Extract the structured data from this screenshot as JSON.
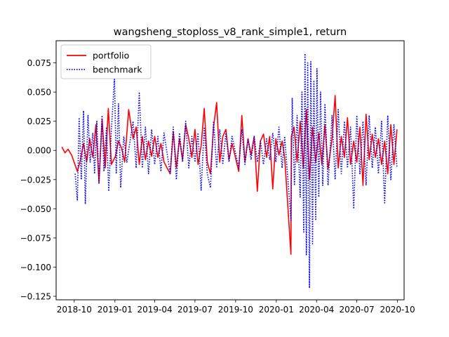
{
  "chart_data": {
    "type": "line",
    "title": "wangsheng_stoploss_v8_rank_simple1, return",
    "xlabel": "",
    "ylabel": "",
    "x_range": [
      "2018-08-21",
      "2020-10-16"
    ],
    "ylim": [
      -0.128,
      0.094
    ],
    "x_ticks": [
      "2018-10",
      "2019-01",
      "2019-04",
      "2019-07",
      "2019-10",
      "2020-01",
      "2020-04",
      "2020-07",
      "2020-10"
    ],
    "y_ticks": [
      0.075,
      0.05,
      0.025,
      0.0,
      -0.025,
      -0.05,
      -0.075,
      -0.1,
      -0.125
    ],
    "y_tick_labels": [
      "0.075",
      "0.050",
      "0.025",
      "0.000",
      "−0.025",
      "−0.050",
      "−0.075",
      "−0.100",
      "−0.125"
    ],
    "grid": false,
    "legend_position": "top-left",
    "series": [
      {
        "name": "portfolio",
        "color": "#ff0000",
        "style": "solid",
        "points": [
          [
            "2018-09-03",
            0.003
          ],
          [
            "2018-09-10",
            -0.002
          ],
          [
            "2018-09-17",
            0.001
          ],
          [
            "2018-09-25",
            -0.004
          ],
          [
            "2018-10-08",
            -0.018
          ],
          [
            "2018-10-15",
            -0.008
          ],
          [
            "2018-10-22",
            0.006
          ],
          [
            "2018-10-29",
            -0.01
          ],
          [
            "2018-11-05",
            0.01
          ],
          [
            "2018-11-12",
            -0.006
          ],
          [
            "2018-11-19",
            0.022
          ],
          [
            "2018-11-26",
            -0.028
          ],
          [
            "2018-12-03",
            0.027
          ],
          [
            "2018-12-10",
            -0.015
          ],
          [
            "2018-12-17",
            0.036
          ],
          [
            "2018-12-24",
            -0.012
          ],
          [
            "2019-01-02",
            -0.005
          ],
          [
            "2019-01-09",
            0.008
          ],
          [
            "2019-01-16",
            0.002
          ],
          [
            "2019-01-23",
            -0.01
          ],
          [
            "2019-02-01",
            0.035
          ],
          [
            "2019-02-11",
            0.01
          ],
          [
            "2019-02-18",
            0.02
          ],
          [
            "2019-02-25",
            -0.012
          ],
          [
            "2019-03-04",
            0.012
          ],
          [
            "2019-03-11",
            -0.008
          ],
          [
            "2019-03-18",
            0.008
          ],
          [
            "2019-03-25",
            -0.005
          ],
          [
            "2019-04-01",
            0.012
          ],
          [
            "2019-04-08",
            -0.006
          ],
          [
            "2019-04-15",
            0.006
          ],
          [
            "2019-04-22",
            -0.01
          ],
          [
            "2019-05-06",
            -0.02
          ],
          [
            "2019-05-13",
            0.016
          ],
          [
            "2019-05-20",
            -0.015
          ],
          [
            "2019-05-27",
            0.01
          ],
          [
            "2019-06-03",
            -0.008
          ],
          [
            "2019-06-10",
            0.022
          ],
          [
            "2019-06-17",
            0.01
          ],
          [
            "2019-06-24",
            -0.006
          ],
          [
            "2019-07-01",
            0.018
          ],
          [
            "2019-07-08",
            -0.012
          ],
          [
            "2019-07-15",
            0.004
          ],
          [
            "2019-07-22",
            0.036
          ],
          [
            "2019-07-29",
            -0.01
          ],
          [
            "2019-08-05",
            -0.02
          ],
          [
            "2019-08-12",
            0.02
          ],
          [
            "2019-08-19",
            0.041
          ],
          [
            "2019-08-26",
            -0.01
          ],
          [
            "2019-09-02",
            0.012
          ],
          [
            "2019-09-09",
            0.018
          ],
          [
            "2019-09-16",
            -0.008
          ],
          [
            "2019-09-23",
            0.006
          ],
          [
            "2019-10-08",
            -0.018
          ],
          [
            "2019-10-15",
            0.03
          ],
          [
            "2019-10-22",
            -0.01
          ],
          [
            "2019-10-29",
            0.01
          ],
          [
            "2019-11-05",
            -0.004
          ],
          [
            "2019-11-12",
            0.012
          ],
          [
            "2019-11-19",
            -0.035
          ],
          [
            "2019-11-26",
            0.008
          ],
          [
            "2019-12-03",
            0.014
          ],
          [
            "2019-12-10",
            -0.006
          ],
          [
            "2019-12-17",
            0.012
          ],
          [
            "2019-12-24",
            -0.033
          ],
          [
            "2019-12-31",
            0.01
          ],
          [
            "2020-01-07",
            -0.004
          ],
          [
            "2020-01-14",
            0.008
          ],
          [
            "2020-01-20",
            -0.006
          ],
          [
            "2020-02-03",
            -0.089
          ],
          [
            "2020-02-04",
            0.012
          ],
          [
            "2020-02-10",
            0.02
          ],
          [
            "2020-02-17",
            -0.01
          ],
          [
            "2020-02-24",
            0.025
          ],
          [
            "2020-03-02",
            -0.015
          ],
          [
            "2020-03-09",
            0.035
          ],
          [
            "2020-03-16",
            -0.025
          ],
          [
            "2020-03-23",
            0.02
          ],
          [
            "2020-03-30",
            -0.01
          ],
          [
            "2020-04-06",
            0.015
          ],
          [
            "2020-04-13",
            -0.012
          ],
          [
            "2020-04-20",
            0.022
          ],
          [
            "2020-04-27",
            -0.016
          ],
          [
            "2020-05-06",
            0.01
          ],
          [
            "2020-05-13",
            0.047
          ],
          [
            "2020-05-20",
            -0.015
          ],
          [
            "2020-05-27",
            0.012
          ],
          [
            "2020-06-03",
            -0.006
          ],
          [
            "2020-06-10",
            0.028
          ],
          [
            "2020-06-17",
            -0.012
          ],
          [
            "2020-06-24",
            0.008
          ],
          [
            "2020-07-01",
            -0.01
          ],
          [
            "2020-07-08",
            0.02
          ],
          [
            "2020-07-15",
            -0.03
          ],
          [
            "2020-07-22",
            0.031
          ],
          [
            "2020-07-29",
            -0.008
          ],
          [
            "2020-08-05",
            0.014
          ],
          [
            "2020-08-12",
            -0.006
          ],
          [
            "2020-08-19",
            0.01
          ],
          [
            "2020-08-26",
            -0.012
          ],
          [
            "2020-09-02",
            0.008
          ],
          [
            "2020-09-09",
            -0.02
          ],
          [
            "2020-09-16",
            0.022
          ],
          [
            "2020-09-23",
            -0.012
          ],
          [
            "2020-09-30",
            0.018
          ]
        ]
      },
      {
        "name": "benchmark",
        "color": "#0000ff",
        "style": "dotted",
        "points": [
          [
            "2018-10-03",
            -0.02
          ],
          [
            "2018-10-08",
            -0.043
          ],
          [
            "2018-10-12",
            0.028
          ],
          [
            "2018-10-17",
            -0.025
          ],
          [
            "2018-10-22",
            0.034
          ],
          [
            "2018-10-26",
            -0.046
          ],
          [
            "2018-11-01",
            0.03
          ],
          [
            "2018-11-06",
            -0.01
          ],
          [
            "2018-11-12",
            0.015
          ],
          [
            "2018-11-16",
            -0.02
          ],
          [
            "2018-11-21",
            0.025
          ],
          [
            "2018-11-26",
            -0.028
          ],
          [
            "2018-12-03",
            0.03
          ],
          [
            "2018-12-07",
            -0.018
          ],
          [
            "2018-12-13",
            0.02
          ],
          [
            "2018-12-18",
            -0.035
          ],
          [
            "2018-12-24",
            0.018
          ],
          [
            "2018-12-31",
            0.062
          ],
          [
            "2019-01-04",
            -0.02
          ],
          [
            "2019-01-09",
            0.04
          ],
          [
            "2019-01-14",
            -0.032
          ],
          [
            "2019-01-21",
            0.012
          ],
          [
            "2019-01-28",
            -0.01
          ],
          [
            "2019-02-11",
            0.025
          ],
          [
            "2019-02-18",
            -0.015
          ],
          [
            "2019-02-25",
            0.05
          ],
          [
            "2019-03-04",
            -0.015
          ],
          [
            "2019-03-11",
            0.02
          ],
          [
            "2019-03-18",
            -0.02
          ],
          [
            "2019-03-25",
            0.018
          ],
          [
            "2019-04-01",
            -0.012
          ],
          [
            "2019-04-08",
            0.012
          ],
          [
            "2019-04-15",
            -0.018
          ],
          [
            "2019-04-22",
            0.015
          ],
          [
            "2019-05-06",
            -0.02
          ],
          [
            "2019-05-13",
            0.02
          ],
          [
            "2019-05-20",
            -0.025
          ],
          [
            "2019-05-27",
            0.015
          ],
          [
            "2019-06-03",
            -0.01
          ],
          [
            "2019-06-10",
            0.025
          ],
          [
            "2019-06-17",
            -0.015
          ],
          [
            "2019-06-24",
            0.012
          ],
          [
            "2019-07-01",
            -0.01
          ],
          [
            "2019-07-08",
            0.015
          ],
          [
            "2019-07-15",
            -0.034
          ],
          [
            "2019-07-22",
            0.02
          ],
          [
            "2019-07-29",
            -0.02
          ],
          [
            "2019-08-05",
            -0.032
          ],
          [
            "2019-08-12",
            0.025
          ],
          [
            "2019-08-19",
            -0.015
          ],
          [
            "2019-08-26",
            0.018
          ],
          [
            "2019-09-02",
            -0.012
          ],
          [
            "2019-09-09",
            0.015
          ],
          [
            "2019-09-16",
            -0.01
          ],
          [
            "2019-09-23",
            0.012
          ],
          [
            "2019-10-08",
            -0.015
          ],
          [
            "2019-10-15",
            0.018
          ],
          [
            "2019-10-22",
            -0.012
          ],
          [
            "2019-10-29",
            0.01
          ],
          [
            "2019-11-05",
            -0.008
          ],
          [
            "2019-11-12",
            0.012
          ],
          [
            "2019-11-19",
            -0.01
          ],
          [
            "2019-11-26",
            0.008
          ],
          [
            "2019-12-03",
            -0.012
          ],
          [
            "2019-12-10",
            0.01
          ],
          [
            "2019-12-17",
            -0.008
          ],
          [
            "2019-12-24",
            0.015
          ],
          [
            "2019-12-31",
            -0.01
          ],
          [
            "2020-01-07",
            0.02
          ],
          [
            "2020-01-14",
            -0.015
          ],
          [
            "2020-01-20",
            0.012
          ],
          [
            "2020-02-03",
            -0.06
          ],
          [
            "2020-02-06",
            0.045
          ],
          [
            "2020-02-11",
            -0.03
          ],
          [
            "2020-02-17",
            0.03
          ],
          [
            "2020-02-24",
            -0.04
          ],
          [
            "2020-02-28",
            0.05
          ],
          [
            "2020-03-03",
            -0.07
          ],
          [
            "2020-03-06",
            0.083
          ],
          [
            "2020-03-09",
            -0.09
          ],
          [
            "2020-03-12",
            0.075
          ],
          [
            "2020-03-16",
            -0.118
          ],
          [
            "2020-03-19",
            0.076
          ],
          [
            "2020-03-23",
            -0.08
          ],
          [
            "2020-03-26",
            0.06
          ],
          [
            "2020-03-30",
            -0.06
          ],
          [
            "2020-04-02",
            0.07
          ],
          [
            "2020-04-06",
            -0.04
          ],
          [
            "2020-04-10",
            0.05
          ],
          [
            "2020-04-15",
            -0.03
          ],
          [
            "2020-04-20",
            0.04
          ],
          [
            "2020-04-27",
            -0.03
          ],
          [
            "2020-05-06",
            0.03
          ],
          [
            "2020-05-13",
            -0.025
          ],
          [
            "2020-05-20",
            0.035
          ],
          [
            "2020-05-27",
            -0.02
          ],
          [
            "2020-06-03",
            0.025
          ],
          [
            "2020-06-10",
            -0.015
          ],
          [
            "2020-06-17",
            0.02
          ],
          [
            "2020-06-24",
            -0.05
          ],
          [
            "2020-07-01",
            0.03
          ],
          [
            "2020-07-08",
            -0.02
          ],
          [
            "2020-07-15",
            0.025
          ],
          [
            "2020-07-22",
            -0.03
          ],
          [
            "2020-07-29",
            0.03
          ],
          [
            "2020-08-05",
            -0.015
          ],
          [
            "2020-08-12",
            0.02
          ],
          [
            "2020-08-19",
            -0.02
          ],
          [
            "2020-08-26",
            0.025
          ],
          [
            "2020-09-02",
            -0.045
          ],
          [
            "2020-09-09",
            0.03
          ],
          [
            "2020-09-16",
            -0.025
          ],
          [
            "2020-09-23",
            0.022
          ],
          [
            "2020-09-30",
            -0.015
          ]
        ]
      }
    ]
  }
}
